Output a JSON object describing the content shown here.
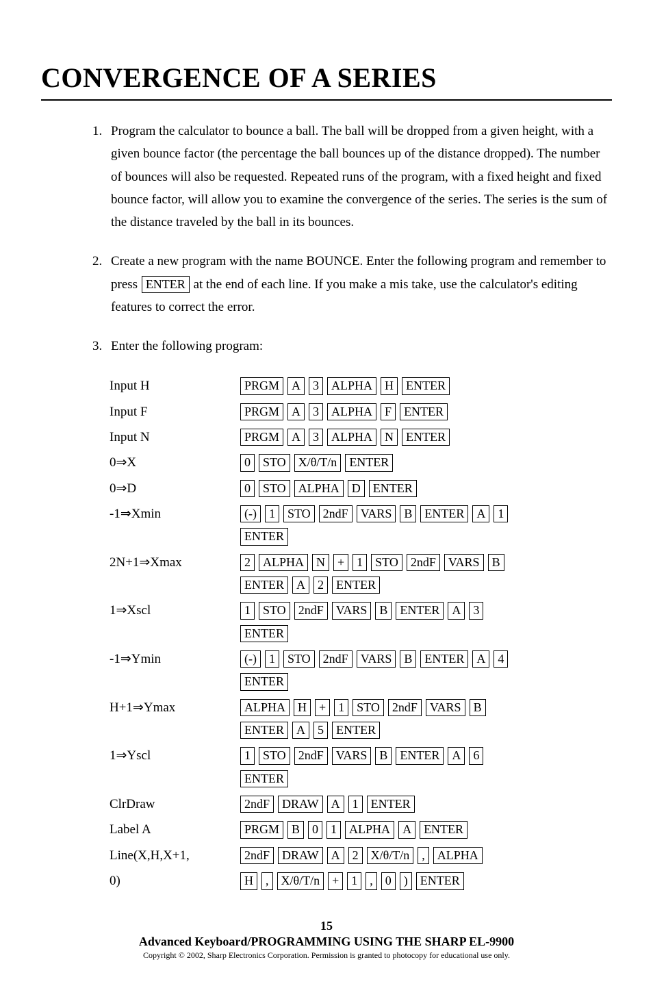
{
  "title": "CONVERGENCE OF A SERIES",
  "items": {
    "1": "Program the calculator to bounce a ball.  The ball will be dropped from a given height, with a given bounce factor (the percentage the ball bounces up of the distance dropped).  The number of bounces will also be requested.  Repeated runs of the program, with a fixed height and fixed bounce factor, will allow you to examine the convergence of the series.  The series is the sum of the distance traveled by the ball in its bounces.",
    "2a": "Create a new program with the name BOUNCE.  Enter the following program and remember to press ",
    "2key": "ENTER",
    "2b": " at the end of each line.  If you make a mis take, use the calculator's editing features to correct the error.",
    "3": "Enter the following program:"
  },
  "rows": [
    {
      "label": "Input H",
      "keys": [
        [
          "PRGM",
          "A",
          "3",
          "ALPHA",
          "H",
          "ENTER"
        ]
      ]
    },
    {
      "label": "Input F",
      "keys": [
        [
          "PRGM",
          "A",
          "3",
          "ALPHA",
          "F",
          "ENTER"
        ]
      ]
    },
    {
      "label": "Input N",
      "keys": [
        [
          "PRGM",
          "A",
          "3",
          "ALPHA",
          "N",
          "ENTER"
        ]
      ]
    },
    {
      "label": "0⇒X",
      "keys": [
        [
          "0",
          "STO",
          "X/θ/T/n",
          "ENTER"
        ]
      ]
    },
    {
      "label": "0⇒D",
      "keys": [
        [
          "0",
          "STO",
          "ALPHA",
          "D",
          "ENTER"
        ]
      ]
    },
    {
      "label": "-1⇒Xmin",
      "keys": [
        [
          "(-)",
          "1",
          "STO",
          "2ndF",
          "VARS",
          "B",
          "ENTER",
          "A",
          "1"
        ],
        [
          "ENTER"
        ]
      ]
    },
    {
      "label": "2N+1⇒Xmax",
      "keys": [
        [
          "2",
          "ALPHA",
          "N",
          "+",
          "1",
          "STO",
          "2ndF",
          "VARS",
          "B"
        ],
        [
          "ENTER",
          "A",
          "2",
          "ENTER"
        ]
      ]
    },
    {
      "label": "1⇒Xscl",
      "keys": [
        [
          "1",
          "STO",
          "2ndF",
          "VARS",
          "B",
          "ENTER",
          "A",
          "3"
        ],
        [
          "ENTER"
        ]
      ]
    },
    {
      "label": "-1⇒Ymin",
      "keys": [
        [
          "(-)",
          "1",
          "STO",
          "2ndF",
          "VARS",
          "B",
          "ENTER",
          "A",
          "4"
        ],
        [
          "ENTER"
        ]
      ]
    },
    {
      "label": "H+1⇒Ymax",
      "keys": [
        [
          "ALPHA",
          "H",
          "+",
          "1",
          "STO",
          "2ndF",
          "VARS",
          "B"
        ],
        [
          "ENTER",
          "A",
          "5",
          "ENTER"
        ]
      ]
    },
    {
      "label": "1⇒Yscl",
      "keys": [
        [
          "1",
          "STO",
          "2ndF",
          "VARS",
          "B",
          "ENTER",
          "A",
          "6"
        ],
        [
          "ENTER"
        ]
      ]
    },
    {
      "label": "ClrDraw",
      "keys": [
        [
          "2ndF",
          "DRAW",
          "A",
          "1",
          "ENTER"
        ]
      ]
    },
    {
      "label": "Label A",
      "keys": [
        [
          "PRGM",
          "B",
          "0",
          "1",
          "ALPHA",
          "A",
          "ENTER"
        ]
      ]
    },
    {
      "label": "Line(X,H,X+1,",
      "keys": [
        [
          "2ndF",
          "DRAW",
          "A",
          "2",
          "X/θ/T/n",
          ",",
          "ALPHA"
        ]
      ]
    },
    {
      "label": "0)",
      "keys": [
        [
          "H",
          ",",
          "X/θ/T/n",
          "+",
          "1",
          ",",
          "0",
          ")",
          "ENTER"
        ]
      ]
    }
  ],
  "footer": {
    "page": "15",
    "manual": "Advanced Keyboard/PROGRAMMING USING THE SHARP EL-9900",
    "copyright": "Copyright © 2002, Sharp Electronics Corporation.  Permission is granted to photocopy for educational use only."
  }
}
